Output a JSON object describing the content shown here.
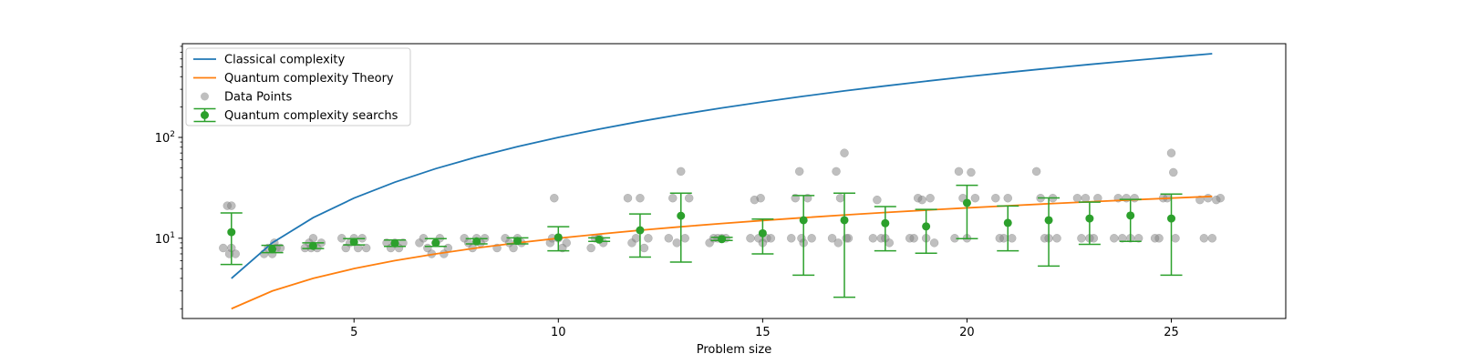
{
  "chart_data": {
    "type": "scatter",
    "xlabel": "Problem size",
    "ylabel": "",
    "yscale": "log",
    "xlim": [
      0.8,
      27.8
    ],
    "ylim": [
      1.6,
      850
    ],
    "x_ticks": [
      5,
      10,
      15,
      20,
      25
    ],
    "y_ticks": [
      {
        "value": 10,
        "label": "10",
        "sup": "1"
      },
      {
        "value": 100,
        "label": "10",
        "sup": "2"
      }
    ],
    "legend_position": "top-left",
    "colors": {
      "classical": "#1f77b4",
      "quantum_theory": "#ff7f0e",
      "quantum_search": "#2ca02c",
      "data_points": "#808080"
    },
    "series": [
      {
        "name": "Classical complexity",
        "kind": "line",
        "x": [
          2,
          3,
          4,
          5,
          6,
          7,
          8,
          9,
          10,
          11,
          12,
          13,
          14,
          15,
          16,
          17,
          18,
          19,
          20,
          21,
          22,
          23,
          24,
          25,
          26
        ],
        "y": [
          4,
          9,
          16,
          25,
          36,
          49,
          64,
          81,
          100,
          121,
          144,
          169,
          196,
          225,
          256,
          289,
          324,
          361,
          400,
          441,
          484,
          529,
          576,
          625,
          676
        ]
      },
      {
        "name": "Quantum complexity Theory",
        "kind": "line",
        "x": [
          2,
          3,
          4,
          5,
          6,
          7,
          8,
          9,
          10,
          11,
          12,
          13,
          14,
          15,
          16,
          17,
          18,
          19,
          20,
          21,
          22,
          23,
          24,
          25,
          26
        ],
        "y": [
          2,
          3,
          4,
          5,
          6,
          7,
          8,
          9,
          10,
          11,
          12,
          13,
          14,
          15,
          16,
          17,
          18,
          19,
          20,
          21,
          22,
          23,
          24,
          25,
          26
        ]
      },
      {
        "name": "Data Points",
        "kind": "scatter",
        "points": [
          [
            1.8,
            8
          ],
          [
            1.9,
            21
          ],
          [
            2.0,
            8
          ],
          [
            2.0,
            21
          ],
          [
            2.1,
            7
          ],
          [
            1.95,
            7
          ],
          [
            2.8,
            7
          ],
          [
            2.9,
            8
          ],
          [
            3.0,
            7
          ],
          [
            3.05,
            9
          ],
          [
            3.1,
            8
          ],
          [
            3.2,
            8
          ],
          [
            3.8,
            8
          ],
          [
            3.9,
            9
          ],
          [
            4.0,
            10
          ],
          [
            4.1,
            8
          ],
          [
            4.2,
            9
          ],
          [
            3.95,
            8
          ],
          [
            4.7,
            10
          ],
          [
            4.8,
            8
          ],
          [
            4.9,
            9
          ],
          [
            5.0,
            10
          ],
          [
            5.1,
            8
          ],
          [
            5.2,
            10
          ],
          [
            5.3,
            8
          ],
          [
            5.8,
            9
          ],
          [
            5.9,
            8
          ],
          [
            6.0,
            9
          ],
          [
            6.1,
            8
          ],
          [
            6.2,
            9
          ],
          [
            6.6,
            9
          ],
          [
            6.7,
            10
          ],
          [
            6.8,
            8
          ],
          [
            6.9,
            7
          ],
          [
            7.0,
            9
          ],
          [
            7.1,
            10
          ],
          [
            7.2,
            7
          ],
          [
            7.3,
            8
          ],
          [
            7.7,
            10
          ],
          [
            7.8,
            9
          ],
          [
            7.9,
            8
          ],
          [
            8.0,
            10
          ],
          [
            8.1,
            9
          ],
          [
            8.2,
            10
          ],
          [
            8.5,
            8
          ],
          [
            8.7,
            10
          ],
          [
            8.8,
            9
          ],
          [
            8.9,
            8
          ],
          [
            9.0,
            10
          ],
          [
            9.1,
            9
          ],
          [
            9.8,
            9
          ],
          [
            9.9,
            25
          ],
          [
            10.0,
            10
          ],
          [
            10.1,
            8
          ],
          [
            10.2,
            9
          ],
          [
            9.85,
            10
          ],
          [
            10.8,
            8
          ],
          [
            10.9,
            10
          ],
          [
            11.0,
            10
          ],
          [
            11.1,
            9
          ],
          [
            11.7,
            25
          ],
          [
            11.8,
            9
          ],
          [
            11.9,
            10
          ],
          [
            12.0,
            25
          ],
          [
            12.1,
            8
          ],
          [
            12.2,
            10
          ],
          [
            12.7,
            10
          ],
          [
            12.8,
            25
          ],
          [
            13.0,
            46
          ],
          [
            13.1,
            10
          ],
          [
            13.2,
            25
          ],
          [
            12.9,
            9
          ],
          [
            13.7,
            9
          ],
          [
            13.8,
            10
          ],
          [
            13.9,
            10
          ],
          [
            14.0,
            10
          ],
          [
            14.1,
            10
          ],
          [
            14.7,
            10
          ],
          [
            14.8,
            24
          ],
          [
            14.9,
            10
          ],
          [
            15.0,
            9
          ],
          [
            15.1,
            10
          ],
          [
            14.95,
            25
          ],
          [
            15.2,
            10
          ],
          [
            15.7,
            10
          ],
          [
            15.8,
            25
          ],
          [
            15.9,
            46
          ],
          [
            16.0,
            9
          ],
          [
            16.1,
            25
          ],
          [
            16.2,
            10
          ],
          [
            15.95,
            10
          ],
          [
            16.7,
            10
          ],
          [
            16.8,
            46
          ],
          [
            16.9,
            25
          ],
          [
            17.0,
            70
          ],
          [
            17.1,
            10
          ],
          [
            16.85,
            9
          ],
          [
            17.05,
            10
          ],
          [
            17.7,
            10
          ],
          [
            17.8,
            24
          ],
          [
            17.9,
            10
          ],
          [
            18.0,
            10
          ],
          [
            18.1,
            9
          ],
          [
            18.6,
            10
          ],
          [
            18.7,
            10
          ],
          [
            18.8,
            25
          ],
          [
            18.9,
            24
          ],
          [
            19.0,
            10
          ],
          [
            19.1,
            25
          ],
          [
            19.2,
            9
          ],
          [
            19.7,
            10
          ],
          [
            19.8,
            46
          ],
          [
            19.9,
            25
          ],
          [
            20.0,
            10
          ],
          [
            20.1,
            45
          ],
          [
            20.2,
            25
          ],
          [
            20.7,
            25
          ],
          [
            20.8,
            10
          ],
          [
            20.9,
            10
          ],
          [
            21.0,
            25
          ],
          [
            21.1,
            10
          ],
          [
            21.7,
            46
          ],
          [
            21.8,
            25
          ],
          [
            21.9,
            10
          ],
          [
            22.0,
            10
          ],
          [
            22.1,
            25
          ],
          [
            22.2,
            10
          ],
          [
            22.7,
            25
          ],
          [
            22.8,
            10
          ],
          [
            22.9,
            25
          ],
          [
            23.0,
            10
          ],
          [
            23.1,
            10
          ],
          [
            23.2,
            25
          ],
          [
            23.6,
            10
          ],
          [
            23.7,
            25
          ],
          [
            23.8,
            10
          ],
          [
            23.9,
            25
          ],
          [
            24.0,
            10
          ],
          [
            24.1,
            25
          ],
          [
            24.2,
            10
          ],
          [
            24.6,
            10
          ],
          [
            24.7,
            10
          ],
          [
            24.8,
            25
          ],
          [
            24.9,
            25
          ],
          [
            25.0,
            70
          ],
          [
            25.05,
            45
          ],
          [
            25.1,
            10
          ],
          [
            25.7,
            24
          ],
          [
            25.8,
            10
          ],
          [
            25.9,
            25
          ],
          [
            26.0,
            10
          ],
          [
            26.1,
            24
          ],
          [
            26.2,
            25
          ]
        ]
      },
      {
        "name": "Quantum complexity searchs",
        "kind": "errorbar",
        "x": [
          2,
          3,
          4,
          5,
          6,
          7,
          8,
          9,
          10,
          11,
          12,
          13,
          14,
          15,
          16,
          17,
          18,
          19,
          20,
          21,
          22,
          23,
          24,
          25
        ],
        "y": [
          11.5,
          7.8,
          8.4,
          9.2,
          8.9,
          9.0,
          9.3,
          9.4,
          10.2,
          9.7,
          12,
          16.7,
          9.8,
          11.2,
          15.1,
          15.1,
          14.1,
          13.1,
          22.4,
          14.2,
          15.1,
          15.7,
          16.8,
          15.7
        ],
        "yerr_low": [
          5.5,
          7.2,
          7.9,
          8.6,
          8.3,
          8.3,
          8.8,
          8.8,
          7.5,
          9.3,
          6.5,
          5.8,
          9.5,
          7.0,
          4.3,
          2.6,
          7.5,
          7.1,
          9.9,
          7.5,
          5.3,
          8.7,
          9.3,
          4.3
        ],
        "yerr_high": [
          17.8,
          8.5,
          9.0,
          9.9,
          9.6,
          9.9,
          9.9,
          10.1,
          13.0,
          10.1,
          17.4,
          28.0,
          10.2,
          15.5,
          26.5,
          28.0,
          20.6,
          19.3,
          33.5,
          20.9,
          25.1,
          22.8,
          24.3,
          27.4
        ]
      }
    ]
  }
}
